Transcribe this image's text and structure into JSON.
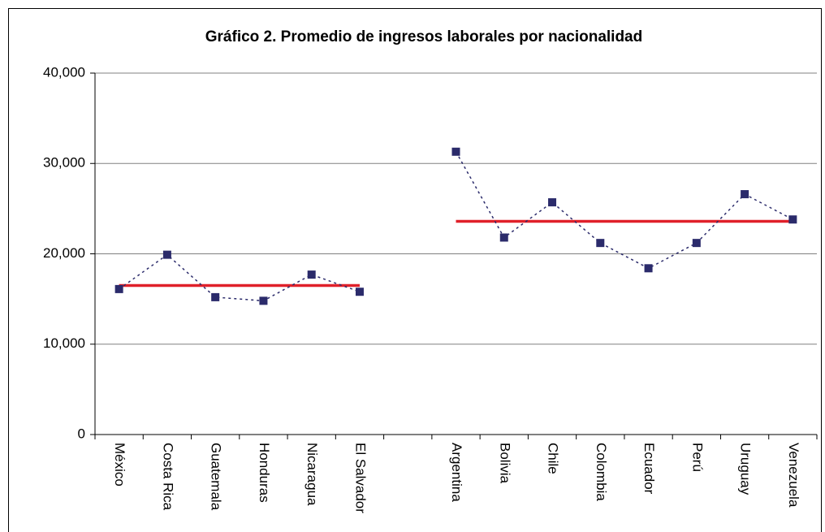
{
  "chart_data": {
    "type": "line",
    "title": "Gráfico 2. Promedio de ingresos laborales por nacionalidad",
    "categories": [
      "México",
      "Costa Rica",
      "Guatemala",
      "Honduras",
      "Nicaragua",
      "El Salvador",
      null,
      "Argentina",
      "Bolivia",
      "Chile",
      "Colombia",
      "Ecuador",
      "Perú",
      "Uruguay",
      "Venezuela"
    ],
    "series": [
      {
        "color": "#2b2b6b",
        "dashed": true,
        "marker": "square",
        "values": [
          16100,
          19900,
          15200,
          14800,
          17700,
          15800,
          null,
          31300,
          21800,
          25700,
          21200,
          18400,
          21200,
          26600,
          23800
        ]
      },
      {
        "color": "#e0202a",
        "dashed": false,
        "marker": "none",
        "values": [
          16500,
          16500,
          16500,
          16500,
          16500,
          16500,
          null,
          23600,
          23600,
          23600,
          23600,
          23600,
          23600,
          23600,
          23600
        ]
      }
    ],
    "ylim": [
      0,
      40000
    ],
    "yticks": [
      0,
      {
        "value": 10000,
        "label": "10,000"
      },
      {
        "value": 20000,
        "label": "20,000"
      },
      {
        "value": 30000,
        "label": "30,000"
      },
      {
        "value": 40000,
        "label": "40,000"
      }
    ],
    "grid": true
  }
}
